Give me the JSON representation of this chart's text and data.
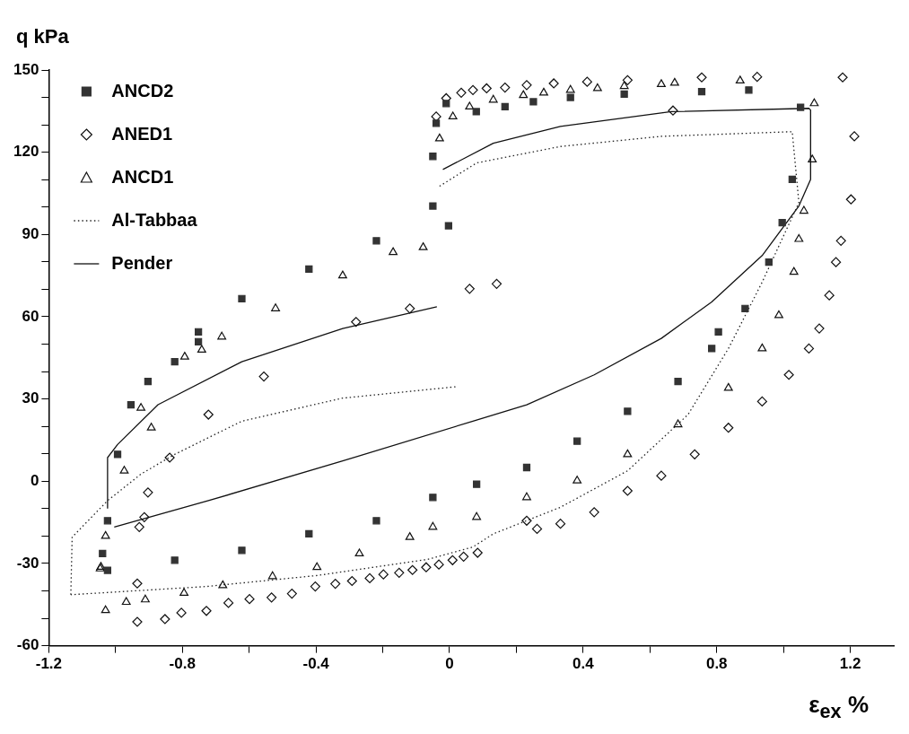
{
  "chart_data": {
    "type": "scatter",
    "ylabel": "q kPa",
    "xlabel": "ε$_{ex}$ %",
    "xlim": [
      -1.2,
      1.33
    ],
    "xticks": [
      {
        "value": -1.2,
        "label": "-1.2"
      },
      {
        "value": -1.0,
        "label": null
      },
      {
        "value": -0.8,
        "label": "-0.8"
      },
      {
        "value": -0.6,
        "label": null
      },
      {
        "value": -0.4,
        "label": "-0.4"
      },
      {
        "value": -0.2,
        "label": null
      },
      0,
      {
        "value": 0.2,
        "label": null
      },
      {
        "value": 0.4,
        "label": "0.4"
      },
      {
        "value": 0.6,
        "label": null
      },
      {
        "value": 0.8,
        "label": "0.8"
      },
      {
        "value": 1.0,
        "label": null
      },
      {
        "value": 1.2,
        "label": "1.2"
      }
    ],
    "ylim": [
      -60,
      150
    ],
    "yticks": [
      -60,
      {
        "value": -50,
        "label": null
      },
      {
        "value": -40,
        "label": null
      },
      -30,
      {
        "value": -20,
        "label": null
      },
      {
        "value": -10,
        "label": null
      },
      0,
      {
        "value": 10,
        "label": null
      },
      {
        "value": 20,
        "label": null
      },
      30,
      {
        "value": 40,
        "label": null
      },
      {
        "value": 50,
        "label": null
      },
      60,
      {
        "value": 70,
        "label": null
      },
      {
        "value": 80,
        "label": null
      },
      90,
      {
        "value": 100,
        "label": null
      },
      {
        "value": 110,
        "label": null
      },
      120,
      {
        "value": 130,
        "label": null
      },
      {
        "value": 140,
        "label": null
      },
      150
    ],
    "grid": false,
    "legend": "top left",
    "series": [
      {
        "name": "ANCD2",
        "type": "scatter",
        "marker": "square",
        "color": "#333333",
        "x": [
          -1.039,
          -1.024,
          -0.994,
          -0.954,
          -0.903,
          -0.823,
          -0.752,
          -0.752,
          -0.622,
          -0.421,
          -0.219,
          -0.003,
          -0.05,
          -0.05,
          -0.04,
          -0.01,
          0.08,
          0.166,
          0.251,
          0.362,
          0.523,
          0.755,
          0.896,
          1.051,
          1.026,
          0.996,
          0.956,
          0.885,
          0.805,
          0.785,
          0.684,
          0.533,
          0.382,
          0.231,
          0.081,
          -0.05,
          -0.219,
          -0.421,
          -0.622,
          -0.823,
          -1.024
        ],
        "values": [
          -26.4,
          -14.4,
          9.8,
          27.9,
          36.4,
          43.6,
          50.9,
          54.5,
          66.6,
          77.4,
          87.7,
          93.2,
          100.4,
          118.5,
          130.6,
          137.8,
          134.8,
          136.6,
          138.4,
          140.0,
          141.2,
          142.1,
          142.7,
          136.4,
          110.1,
          94.3,
          79.9,
          63.0,
          54.5,
          48.4,
          36.4,
          25.5,
          14.6,
          5.0,
          -1.1,
          -5.9,
          -14.4,
          -19.2,
          -25.2,
          -28.8,
          -32.5
        ]
      },
      {
        "name": "ANED1",
        "type": "scatter",
        "marker": "diamond",
        "color": "#111111",
        "x": [
          -0.929,
          -0.914,
          -0.903,
          -0.838,
          -0.722,
          -0.556,
          -0.28,
          -0.119,
          0.06,
          0.141,
          -0.04,
          -0.01,
          0.035,
          0.07,
          0.111,
          0.166,
          0.231,
          0.312,
          0.412,
          0.533,
          0.669,
          0.755,
          0.921,
          1.177,
          1.212,
          1.202,
          1.172,
          1.157,
          1.137,
          1.107,
          1.076,
          1.016,
          0.936,
          0.835,
          0.734,
          0.634,
          0.533,
          0.433,
          0.332,
          0.262,
          0.231,
          0.084,
          0.042,
          0.009,
          -0.032,
          -0.07,
          -0.111,
          -0.151,
          -0.198,
          -0.239,
          -0.292,
          -0.342,
          -0.402,
          -0.472,
          -0.533,
          -0.599,
          -0.662,
          -0.728,
          -0.803,
          -0.852,
          -0.935,
          -0.935
        ],
        "values": [
          -16.7,
          -13.1,
          -4.1,
          8.6,
          24.3,
          38.2,
          58.1,
          63.0,
          70.2,
          72.0,
          133.0,
          139.7,
          141.7,
          142.7,
          143.3,
          143.6,
          144.5,
          145.1,
          145.7,
          146.3,
          135.2,
          147.3,
          147.5,
          147.3,
          125.8,
          102.8,
          87.7,
          79.9,
          67.8,
          55.7,
          48.4,
          38.8,
          29.1,
          19.5,
          9.8,
          2.0,
          -3.5,
          -11.3,
          -15.5,
          -17.4,
          -14.4,
          -26.1,
          -27.5,
          -28.8,
          -30.4,
          -31.4,
          -32.4,
          -33.4,
          -34.0,
          -35.4,
          -36.4,
          -37.4,
          -38.4,
          -41.0,
          -42.4,
          -43.0,
          -44.4,
          -47.3,
          -48.0,
          -50.3,
          -51.3,
          -37.3
        ]
      },
      {
        "name": "ANCD1",
        "type": "scatter",
        "marker": "triangle",
        "color": "#111111",
        "x": [
          -1.044,
          -1.03,
          -0.974,
          -0.924,
          -0.893,
          -0.793,
          -0.742,
          -0.682,
          -0.521,
          -0.32,
          -0.169,
          -0.079,
          -0.03,
          0.01,
          0.06,
          0.131,
          0.221,
          0.282,
          0.362,
          0.443,
          0.523,
          0.634,
          0.674,
          0.87,
          1.092,
          1.086,
          1.061,
          1.046,
          1.031,
          0.986,
          0.936,
          0.835,
          0.684,
          0.533,
          0.382,
          0.231,
          0.081,
          -0.05,
          -0.119,
          -0.27,
          -0.397,
          -0.53,
          -0.679,
          -0.795,
          -0.911,
          -0.968,
          -1.03,
          -1.046
        ],
        "values": [
          -31.3,
          -20.0,
          3.8,
          26.7,
          19.5,
          45.4,
          47.9,
          52.7,
          63.0,
          75.0,
          83.5,
          85.3,
          125.0,
          133.0,
          136.6,
          139.1,
          140.8,
          141.7,
          142.7,
          143.3,
          144.1,
          144.8,
          145.3,
          146.1,
          137.8,
          117.3,
          98.6,
          88.3,
          76.3,
          60.5,
          48.4,
          34.0,
          20.7,
          9.8,
          0.2,
          -5.9,
          -13.1,
          -16.7,
          -20.4,
          -26.4,
          -31.4,
          -34.7,
          -38.0,
          -40.8,
          -43.2,
          -44.1,
          -47.1,
          -31.9
        ]
      },
      {
        "name": "Al-Tabbaa",
        "type": "line",
        "marker": "none",
        "line_style": "dotted",
        "color": "#222222",
        "x": [
          -1.134,
          -1.13,
          -1.024,
          -0.924,
          -0.823,
          -0.622,
          -0.32,
          0.022,
          null,
          -0.03,
          0.081,
          0.332,
          0.634,
          1.026,
          1.046,
          0.936,
          0.835,
          0.714,
          0.533,
          0.332,
          0.131,
          0.07,
          -0.065,
          -0.397,
          -0.728,
          -1.134
        ],
        "values": [
          -41.4,
          -20.4,
          -7.1,
          2.6,
          9.8,
          21.9,
          30.3,
          34.5,
          null,
          107.6,
          116.1,
          122.1,
          125.8,
          127.5,
          101.6,
          72.6,
          48.4,
          24.3,
          3.8,
          -9.5,
          -19.2,
          -24.0,
          -28.5,
          -34.4,
          -38.4,
          -41.4
        ]
      },
      {
        "name": "Pender",
        "type": "line",
        "marker": "none",
        "line_style": "solid",
        "color": "#111111",
        "x": [
          -1.024,
          -1.024,
          -0.994,
          -0.873,
          -0.622,
          -0.32,
          -0.038,
          null,
          -0.02,
          0.131,
          0.332,
          0.664,
          1.076,
          1.081,
          1.081,
          1.046,
          0.936,
          0.785,
          0.634,
          0.433,
          0.231,
          0.07,
          -0.32,
          -0.722,
          -1.004
        ],
        "values": [
          -10.0,
          8.6,
          13.4,
          27.9,
          43.6,
          55.7,
          63.6,
          null,
          113.7,
          123.3,
          129.4,
          134.8,
          136.0,
          135.4,
          110.1,
          100.4,
          82.3,
          65.4,
          52.1,
          38.8,
          27.9,
          21.9,
          7.4,
          -7.1,
          -16.7
        ]
      }
    ]
  }
}
